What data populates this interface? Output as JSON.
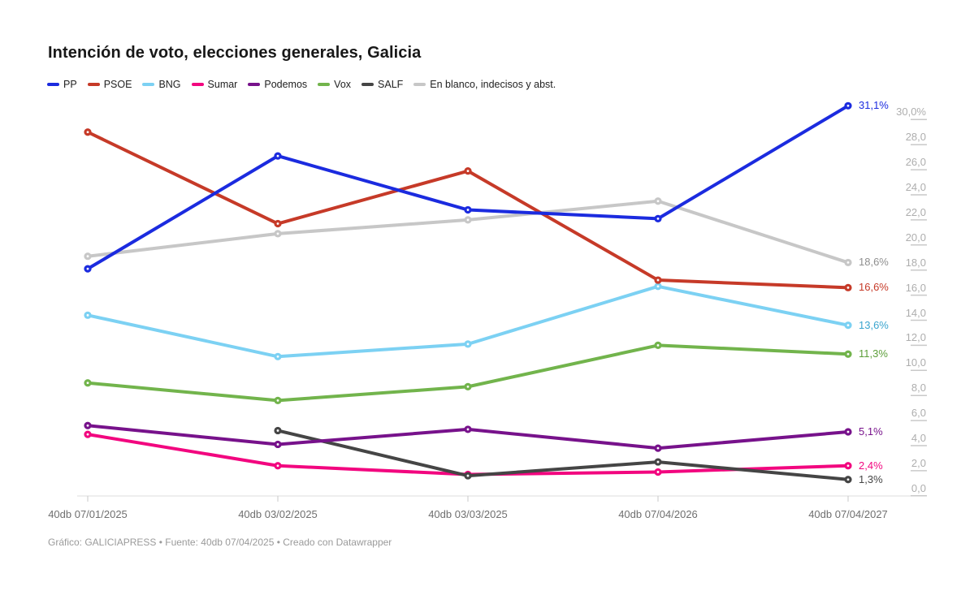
{
  "page": {
    "footer": "Gráfico: GALICIAPRESS • Fuente: 40db 07/04/2025 • Creado con Datawrapper"
  },
  "chart_data": {
    "type": "line",
    "title": "Intención de voto, elecciones generales, Galicia",
    "xlabel": "",
    "ylabel": "",
    "ylim": [
      0,
      30
    ],
    "grid": false,
    "legend_position": "top",
    "x_labels": [
      "40db 07/01/2025",
      "40db 03/02/2025",
      "40db 03/03/2025",
      "40db 07/04/2026",
      "40db 07/04/2027"
    ],
    "y_ticks": [
      {
        "label": "30,0%",
        "value": 30
      },
      {
        "label": "28,0",
        "value": 28
      },
      {
        "label": "26,0",
        "value": 26
      },
      {
        "label": "24,0",
        "value": 24
      },
      {
        "label": "22,0",
        "value": 22
      },
      {
        "label": "20,0",
        "value": 20
      },
      {
        "label": "18,0",
        "value": 18
      },
      {
        "label": "16,0",
        "value": 16
      },
      {
        "label": "14,0",
        "value": 14
      },
      {
        "label": "12,0",
        "value": 12
      },
      {
        "label": "10,0",
        "value": 10
      },
      {
        "label": "8,0",
        "value": 8
      },
      {
        "label": "6,0",
        "value": 6
      },
      {
        "label": "4,0",
        "value": 4
      },
      {
        "label": "2,0",
        "value": 2
      },
      {
        "label": "0,0",
        "value": 0
      }
    ],
    "series": [
      {
        "name": "PP",
        "color": "#1b2bdf",
        "values": [
          18.1,
          27.1,
          22.8,
          22.1,
          31.1
        ],
        "end_label": "31,1%"
      },
      {
        "name": "PSOE",
        "color": "#c63a28",
        "values": [
          29.0,
          21.7,
          25.9,
          17.2,
          16.6
        ],
        "end_label": "16,6%"
      },
      {
        "name": "BNG",
        "color": "#7cd1f3",
        "values": [
          14.4,
          11.1,
          12.1,
          16.7,
          13.6
        ],
        "end_label": "13,6%",
        "end_label_color": "#3aa5cf"
      },
      {
        "name": "Sumar",
        "color": "#f2067f",
        "values": [
          4.9,
          2.4,
          1.7,
          1.9,
          2.4
        ],
        "end_label": "2,4%"
      },
      {
        "name": "Podemos",
        "color": "#77128b",
        "values": [
          5.6,
          4.1,
          5.3,
          3.8,
          5.1
        ],
        "end_label": "5,1%"
      },
      {
        "name": "Vox",
        "color": "#72b44c",
        "values": [
          9.0,
          7.6,
          8.7,
          12.0,
          11.3
        ],
        "end_label": "11,3%",
        "end_label_color": "#5d9e3a"
      },
      {
        "name": "SALF",
        "color": "#454545",
        "values": [
          null,
          5.2,
          1.6,
          2.7,
          1.3
        ],
        "end_label": "1,3%"
      },
      {
        "name": "En blanco, indecisos y abst.",
        "color": "#c7c7c7",
        "values": [
          19.1,
          20.9,
          22.0,
          23.5,
          18.6
        ],
        "end_label": "18,6%",
        "end_label_color": "#8f8f8f"
      }
    ],
    "draw_order": [
      7,
      5,
      3,
      6,
      4,
      2,
      1,
      0
    ]
  }
}
